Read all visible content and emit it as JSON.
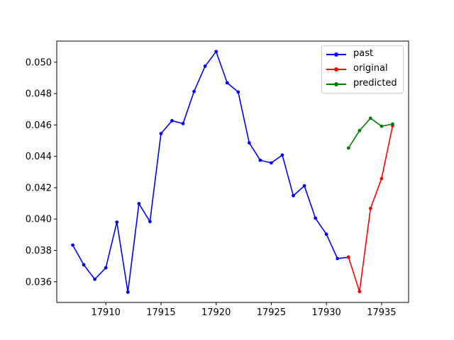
{
  "chart_data": {
    "type": "line",
    "title": "",
    "xlabel": "",
    "ylabel": "",
    "xlim": [
      17905.55,
      17937.45
    ],
    "ylim": [
      0.03468,
      0.05135
    ],
    "xticks": [
      17910,
      17915,
      17920,
      17925,
      17930,
      17935
    ],
    "xtick_labels": [
      "17910",
      "17915",
      "17920",
      "17925",
      "17930",
      "17935"
    ],
    "yticks": [
      0.036,
      0.038,
      0.04,
      0.042,
      0.044,
      0.046,
      0.048,
      0.05
    ],
    "ytick_labels": [
      "0.036",
      "0.038",
      "0.040",
      "0.042",
      "0.044",
      "0.046",
      "0.048",
      "0.050"
    ],
    "grid": false,
    "legend_position": "top-right",
    "series": [
      {
        "name": "past",
        "color": "#0000ff",
        "x": [
          17907,
          17908,
          17909,
          17910,
          17911,
          17912,
          17913,
          17914,
          17915,
          17916,
          17917,
          17918,
          17919,
          17920,
          17921,
          17922,
          17923,
          17924,
          17925,
          17926,
          17927,
          17928,
          17929,
          17930,
          17931,
          17932
        ],
        "y": [
          0.03834,
          0.03708,
          0.03616,
          0.03689,
          0.0398,
          0.03534,
          0.04098,
          0.03984,
          0.04545,
          0.04627,
          0.04609,
          0.04814,
          0.04975,
          0.05068,
          0.04869,
          0.0481,
          0.04486,
          0.04375,
          0.04358,
          0.04408,
          0.04149,
          0.04212,
          0.04006,
          0.03903,
          0.03748,
          0.03757
        ]
      },
      {
        "name": "original",
        "color": "#ff0000",
        "x": [
          17932,
          17933,
          17934,
          17935,
          17936
        ],
        "y": [
          0.03757,
          0.03537,
          0.04068,
          0.04258,
          0.04595
        ]
      },
      {
        "name": "predicted",
        "color": "#008000",
        "x": [
          17932,
          17933,
          17934,
          17935,
          17936
        ],
        "y": [
          0.04453,
          0.04564,
          0.04643,
          0.04592,
          0.04606
        ]
      }
    ]
  }
}
